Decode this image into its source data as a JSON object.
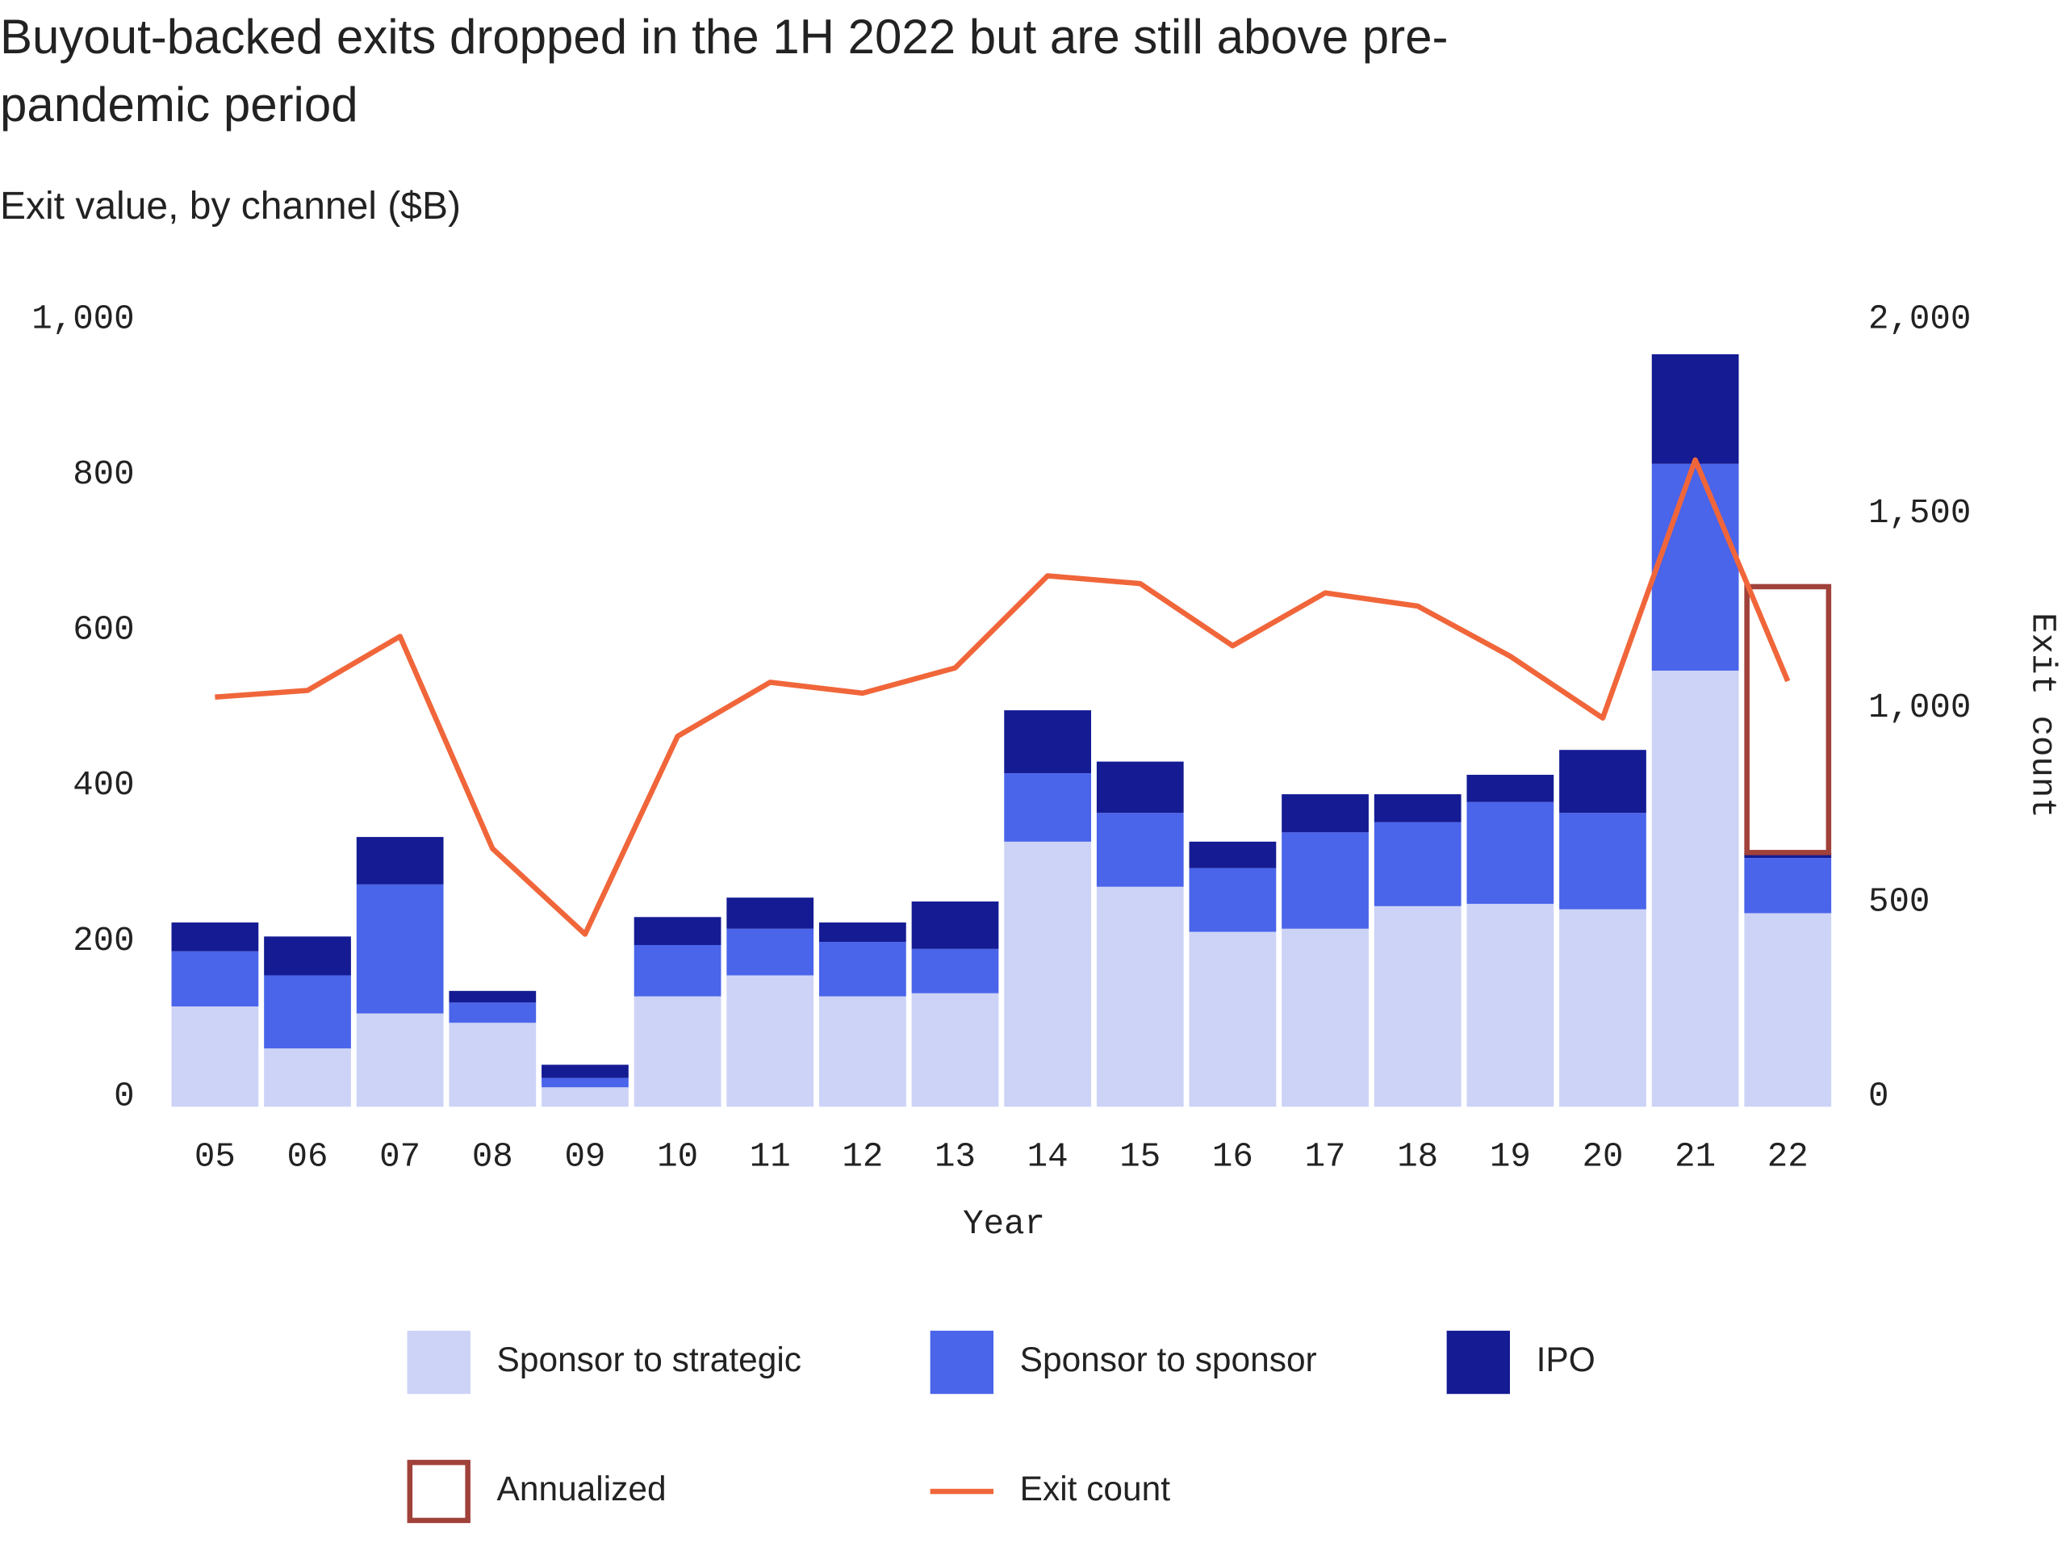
{
  "chart_data": {
    "type": "bar",
    "title": "Buyout-backed exits dropped in the 1H 2022 but are still above pre-pandemic period",
    "subtitle": "Exit value, by channel ($B)",
    "xlabel": "Year",
    "y2label": "Exit count",
    "categories": [
      "05",
      "06",
      "07",
      "08",
      "09",
      "10",
      "11",
      "12",
      "13",
      "14",
      "15",
      "16",
      "17",
      "18",
      "19",
      "20",
      "21",
      "22"
    ],
    "series": [
      {
        "name": "Sponsor to strategic",
        "color": "#cdd3f6",
        "values": [
          129,
          75,
          120,
          108,
          25,
          142,
          169,
          142,
          146,
          341,
          283,
          225,
          229,
          258,
          261,
          254,
          561,
          249
        ]
      },
      {
        "name": "Sponsor to sponsor",
        "color": "#4a64ea",
        "values": [
          71,
          94,
          166,
          26,
          12,
          66,
          60,
          70,
          57,
          88,
          95,
          82,
          124,
          108,
          131,
          124,
          266,
          71
        ]
      },
      {
        "name": "IPO",
        "color": "#141b93",
        "values": [
          37,
          50,
          61,
          15,
          17,
          36,
          40,
          25,
          61,
          81,
          66,
          34,
          49,
          36,
          35,
          81,
          141,
          7
        ]
      },
      {
        "name": "Annualized",
        "color": "#a0413a",
        "style": "outline",
        "values": [
          null,
          null,
          null,
          null,
          null,
          null,
          null,
          null,
          null,
          null,
          null,
          null,
          null,
          null,
          null,
          null,
          null,
          342
        ]
      },
      {
        "name": "Exit count",
        "color": "#f0663a",
        "type": "line",
        "axis": "y2",
        "values": [
          1054,
          1071,
          1210,
          664,
          444,
          953,
          1092,
          1064,
          1129,
          1366,
          1346,
          1186,
          1322,
          1288,
          1159,
          1000,
          1664,
          1095
        ]
      }
    ],
    "ylim": [
      0,
      1000
    ],
    "yticks": [
      0,
      200,
      400,
      600,
      800,
      {
        "value": 1000,
        "label": "1,000"
      }
    ],
    "y2lim": [
      0,
      2000
    ],
    "y2ticks": [
      0,
      500,
      {
        "value": 1000,
        "label": "1,000"
      },
      {
        "value": 1500,
        "label": "1,500"
      },
      {
        "value": 2000,
        "label": "2,000"
      }
    ],
    "grid": false
  }
}
